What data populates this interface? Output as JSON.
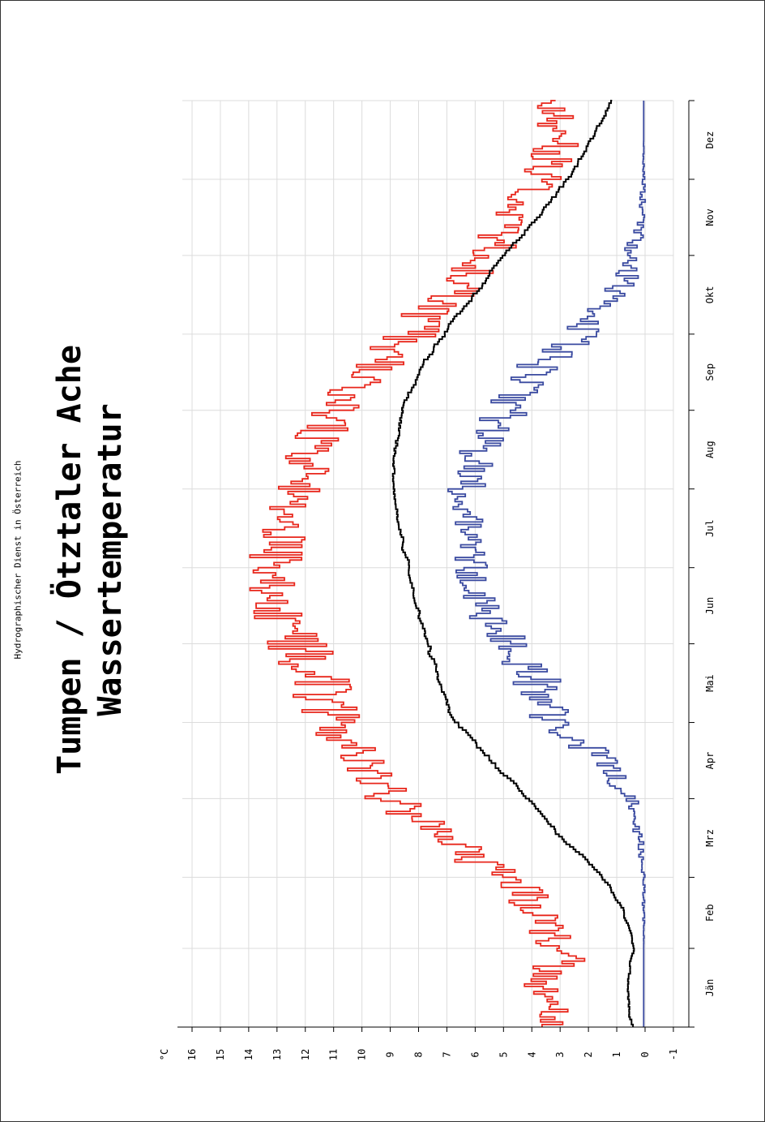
{
  "header": {
    "agency": "Hydrographischer Dienst in Österreich",
    "title": "Tumpen / Ötztaler Ache",
    "subtitle": "Wassertemperatur"
  },
  "chart_data": {
    "type": "line",
    "ylabel": "°C",
    "ylim": [
      -1,
      16
    ],
    "yticks": [
      -1,
      0,
      1,
      2,
      3,
      4,
      5,
      6,
      7,
      8,
      9,
      10,
      11,
      12,
      13,
      14,
      15,
      16
    ],
    "x_range": [
      0,
      365
    ],
    "categories": [
      "Jän",
      "Feb",
      "Mrz",
      "Apr",
      "Mai",
      "Jun",
      "Jul",
      "Aug",
      "Sep",
      "Okt",
      "Nov",
      "Dez"
    ],
    "grid": true,
    "series": [
      {
        "color": "#e8261b",
        "x": [
          0,
          15,
          31,
          45,
          59,
          73,
          90,
          105,
          120,
          135,
          151,
          165,
          181,
          195,
          212,
          228,
          243,
          258,
          273,
          288,
          304,
          319,
          334,
          349,
          365
        ],
        "y": [
          3.2,
          3.6,
          2.8,
          3.8,
          5.0,
          7.0,
          9.0,
          10.3,
          11.0,
          11.6,
          12.3,
          13.0,
          13.2,
          12.6,
          12.2,
          11.8,
          10.8,
          9.6,
          8.3,
          7.0,
          5.6,
          4.7,
          3.6,
          3.1,
          3.4
        ],
        "scatter": [
          0.6,
          0.9,
          1.0,
          1.0,
          0.8,
          1.0,
          0.9,
          1.0,
          1.0,
          1.2,
          1.1,
          1.0,
          1.0,
          0.9,
          0.9,
          0.8,
          0.9,
          0.9,
          1.0,
          1.0,
          0.9,
          0.8,
          0.8,
          0.8,
          0.7
        ]
      },
      {
        "color": "#000000",
        "x": [
          0,
          15,
          31,
          45,
          59,
          73,
          90,
          105,
          120,
          135,
          151,
          165,
          181,
          195,
          212,
          228,
          243,
          258,
          273,
          288,
          304,
          319,
          334,
          349,
          365
        ],
        "y": [
          0.5,
          0.6,
          0.4,
          0.8,
          1.6,
          3.0,
          4.3,
          5.6,
          6.8,
          7.3,
          7.7,
          8.1,
          8.4,
          8.7,
          8.9,
          8.8,
          8.5,
          7.9,
          7.0,
          5.9,
          4.9,
          3.6,
          2.6,
          1.8,
          1.1
        ],
        "scatter": [
          0.1,
          0.1,
          0.1,
          0.1,
          0.1,
          0.15,
          0.15,
          0.2,
          0.15,
          0.15,
          0.15,
          0.15,
          0.15,
          0.1,
          0.1,
          0.15,
          0.15,
          0.15,
          0.15,
          0.15,
          0.15,
          0.15,
          0.15,
          0.1,
          0.1
        ]
      },
      {
        "color": "#3a4aa0",
        "x": [
          0,
          15,
          31,
          45,
          59,
          73,
          90,
          105,
          120,
          135,
          151,
          165,
          181,
          195,
          212,
          228,
          243,
          258,
          273,
          288,
          304,
          319,
          334,
          349,
          365
        ],
        "y": [
          0.05,
          0.05,
          0.05,
          0.05,
          0.05,
          0.2,
          0.5,
          1.6,
          3.2,
          3.8,
          4.8,
          5.8,
          6.0,
          6.2,
          6.3,
          5.8,
          4.8,
          4.0,
          2.3,
          1.0,
          0.4,
          0.1,
          0.05,
          0.05,
          0.05
        ],
        "scatter": [
          0.0,
          0.0,
          0.0,
          0.05,
          0.05,
          0.15,
          0.3,
          0.6,
          0.8,
          0.9,
          0.8,
          0.7,
          0.7,
          0.6,
          0.7,
          0.8,
          0.8,
          0.8,
          0.8,
          0.6,
          0.4,
          0.15,
          0.05,
          0.0,
          0.0
        ]
      }
    ]
  }
}
